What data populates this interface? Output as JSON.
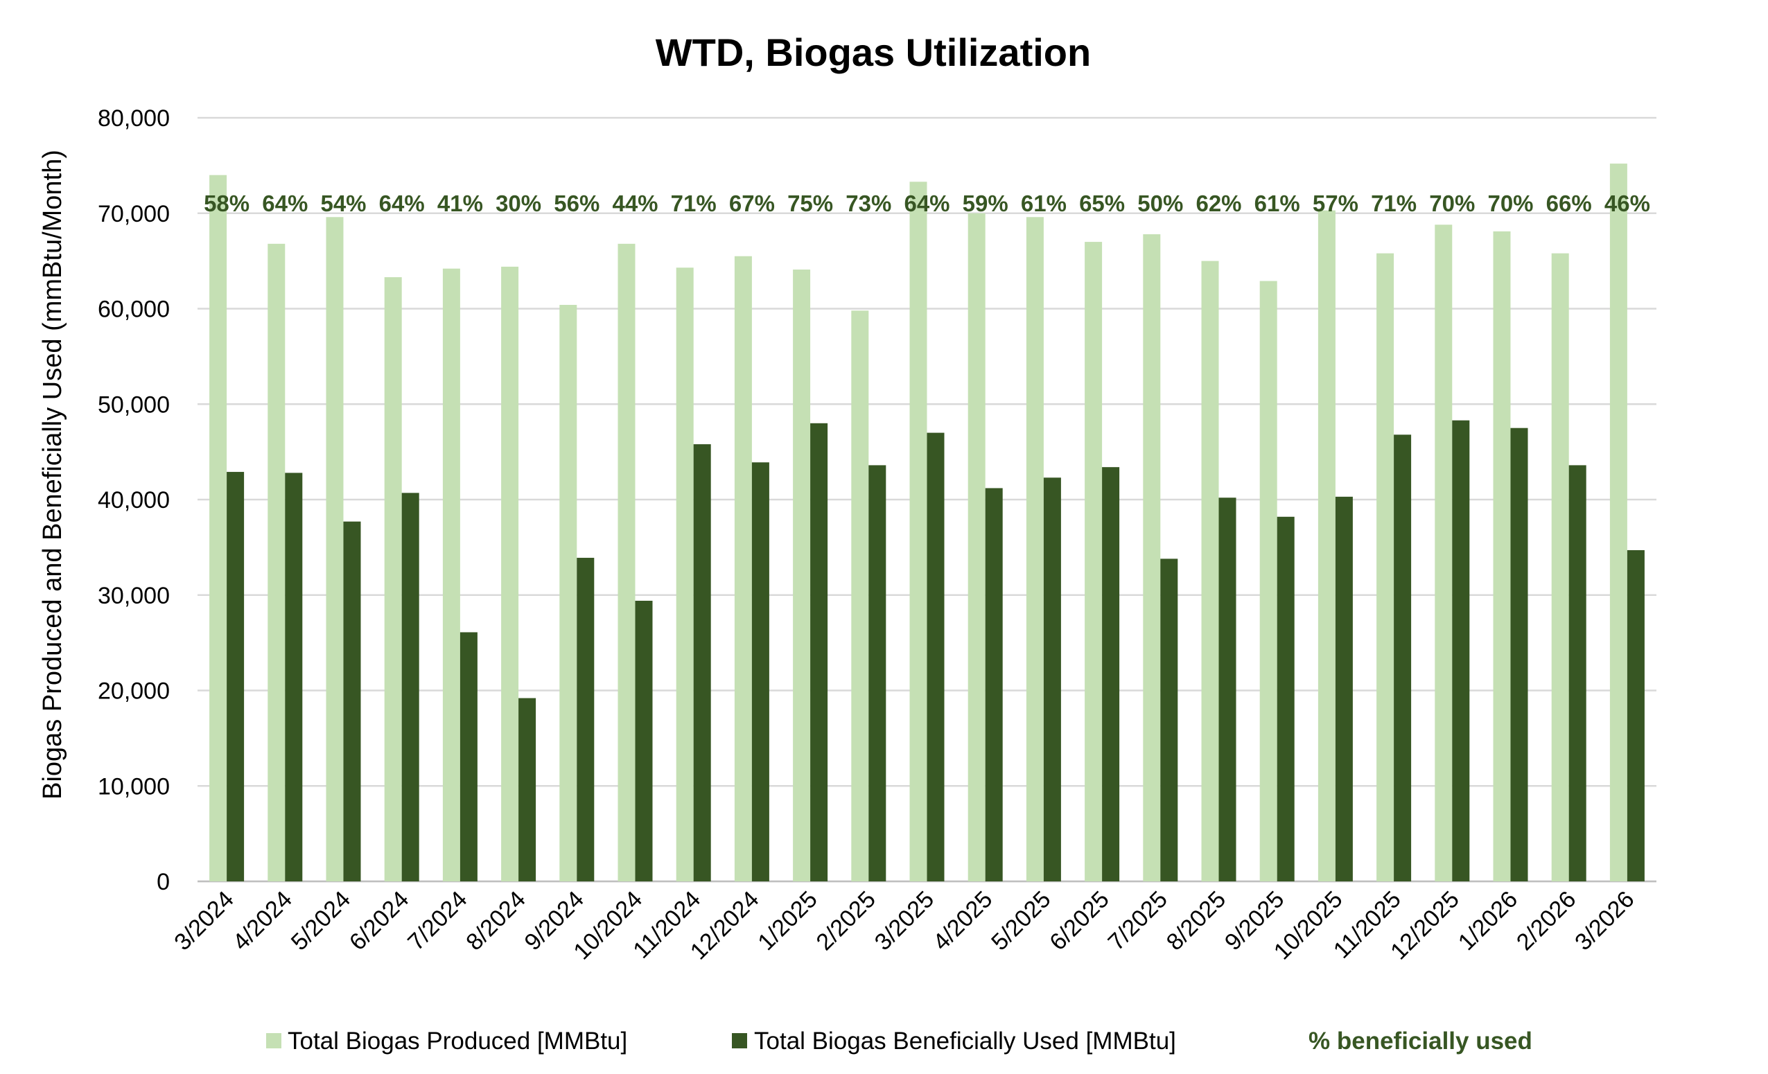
{
  "chart_data": {
    "type": "bar",
    "title": "WTD, Biogas Utilization",
    "ylabel": "Biogas Produced and Beneficially Used (mmBtu/Month)",
    "xlabel": "",
    "ylim": [
      0,
      80000
    ],
    "yticks": [
      0,
      10000,
      20000,
      30000,
      40000,
      50000,
      60000,
      70000,
      80000
    ],
    "ytick_labels": [
      "0",
      "10,000",
      "20,000",
      "30,000",
      "40,000",
      "50,000",
      "60,000",
      "70,000",
      "80,000"
    ],
    "grid": true,
    "legend_position": "bottom",
    "categories": [
      "3/2024",
      "4/2024",
      "5/2024",
      "6/2024",
      "7/2024",
      "8/2024",
      "9/2024",
      "10/2024",
      "11/2024",
      "12/2024",
      "1/2025",
      "2/2025",
      "3/2025",
      "4/2025",
      "5/2025",
      "6/2025",
      "7/2025",
      "8/2025",
      "9/2025",
      "10/2025",
      "11/2025",
      "12/2025",
      "1/2026",
      "2/2026",
      "3/2026"
    ],
    "series": [
      {
        "name": "Total Biogas Produced [MMBtu]",
        "color": "#c5e0b4",
        "values": [
          74000,
          66800,
          69600,
          63300,
          64200,
          64400,
          60400,
          66800,
          64300,
          65500,
          64100,
          59800,
          73300,
          70000,
          69600,
          67000,
          67800,
          65000,
          62900,
          70300,
          65800,
          68800,
          68100,
          65800,
          75200
        ]
      },
      {
        "name": "Total Biogas Beneficially Used [MMBtu]",
        "color": "#375623",
        "values": [
          42900,
          42800,
          37700,
          40700,
          26100,
          19200,
          33900,
          29400,
          45800,
          43900,
          48000,
          43600,
          47000,
          41200,
          42300,
          43400,
          33800,
          40200,
          38200,
          40300,
          46800,
          48300,
          47500,
          43600,
          34700
        ]
      }
    ],
    "pct_series": {
      "name": "% beneficially used",
      "color": "#375623",
      "labels": [
        "58%",
        "64%",
        "54%",
        "64%",
        "41%",
        "30%",
        "56%",
        "44%",
        "71%",
        "67%",
        "75%",
        "73%",
        "64%",
        "59%",
        "61%",
        "65%",
        "50%",
        "62%",
        "61%",
        "57%",
        "71%",
        "70%",
        "70%",
        "66%",
        "46%"
      ]
    }
  }
}
